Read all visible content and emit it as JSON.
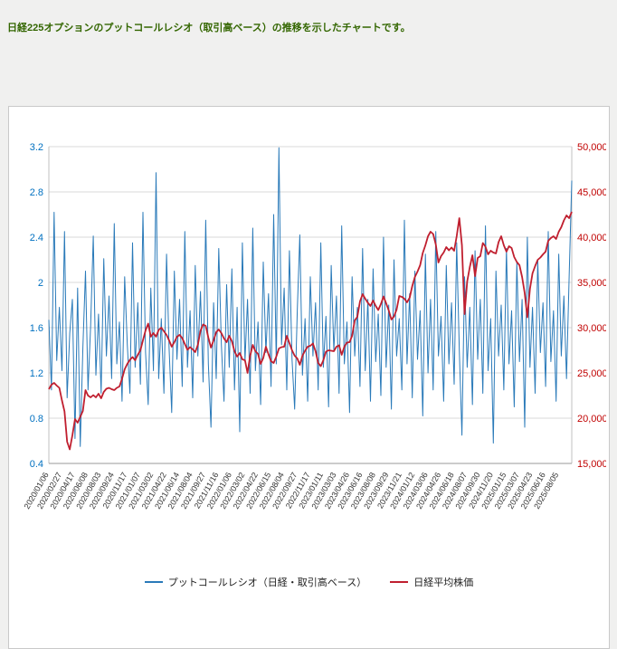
{
  "page": {
    "description": "日経225オプションのプットコールレシオ（取引高ベース）の推移を示したチャートです。"
  },
  "colors": {
    "description_text": "#336600",
    "page_background": "#f0f0ef",
    "panel_background": "#ffffff",
    "grid": "#d9d9d9",
    "axis_line": "#9a9a9a",
    "x_label_text": "#333333",
    "ratio_line": "#2a7ab9",
    "nikkei_line": "#c01f2f",
    "left_axis_text": "#0070c0",
    "right_axis_text": "#c00000"
  },
  "chart_data": {
    "type": "line",
    "title": "",
    "xlabel": "",
    "ylabel": "",
    "grid": "horizontal",
    "legend_position": "bottom",
    "points_per_label": 5,
    "x_labels": [
      "2020/01/06",
      "2020/02/27",
      "2020/04/17",
      "2020/06/08",
      "2020/08/03",
      "2020/09/24",
      "2020/11/17",
      "2021/01/07",
      "2021/03/02",
      "2021/04/22",
      "2021/06/14",
      "2021/08/04",
      "2021/09/27",
      "2021/11/16",
      "2022/01/06",
      "2022/03/02",
      "2022/04/22",
      "2022/06/15",
      "2022/08/04",
      "2022/09/27",
      "2022/11/17",
      "2023/01/11",
      "2023/03/03",
      "2023/04/26",
      "2023/06/16",
      "2023/08/08",
      "2023/09/29",
      "2023/11/21",
      "2024/01/12",
      "2024/03/06",
      "2024/04/26",
      "2024/06/18",
      "2024/08/07",
      "2024/09/30",
      "2024/11/20",
      "2025/01/15",
      "2025/03/07",
      "2025/04/23",
      "2025/06/16",
      "2025/08/05"
    ],
    "left_axis": {
      "min": 0.4,
      "max": 3.2,
      "step": 0.4,
      "color": "#0070c0",
      "tick_labels": [
        "0.4",
        "0.8",
        "1.2",
        "1.6",
        "2",
        "2.4",
        "2.8",
        "3.2"
      ]
    },
    "right_axis": {
      "min": 15000,
      "max": 50000,
      "step": 5000,
      "color": "#c00000",
      "tick_labels": [
        "15,000",
        "20,000",
        "25,000",
        "30,000",
        "35,000",
        "40,000",
        "45,000",
        "50,000"
      ]
    },
    "series": [
      {
        "name": "プットコールレシオ（日経・取引高ベース）",
        "axis": "left",
        "color": "#2a7ab9",
        "values": [
          1.67,
          1.05,
          2.62,
          1.31,
          1.78,
          1.22,
          2.45,
          0.98,
          1.55,
          1.85,
          0.62,
          1.95,
          0.55,
          1.42,
          2.1,
          1.05,
          1.62,
          2.41,
          1.18,
          1.72,
          1.02,
          2.21,
          1.35,
          1.88,
          1.15,
          2.52,
          1.28,
          1.65,
          0.95,
          2.05,
          1.45,
          1.02,
          2.35,
          1.25,
          1.82,
          1.1,
          2.62,
          1.38,
          0.92,
          1.95,
          1.22,
          2.97,
          1.15,
          1.68,
          1.02,
          2.25,
          1.42,
          0.85,
          2.1,
          1.32,
          1.85,
          1.08,
          2.45,
          1.25,
          1.75,
          0.98,
          2.15,
          1.35,
          1.92,
          1.12,
          2.55,
          1.28,
          0.72,
          1.82,
          1.15,
          2.3,
          1.45,
          0.95,
          1.98,
          1.25,
          2.12,
          1.05,
          1.78,
          0.68,
          2.35,
          1.3,
          1.85,
          1.02,
          2.48,
          1.22,
          1.65,
          0.92,
          2.18,
          1.38,
          1.9,
          1.08,
          2.6,
          1.28,
          3.19,
          1.45,
          1.95,
          1.05,
          2.28,
          1.32,
          0.88,
          1.75,
          2.42,
          1.18,
          1.68,
          0.95,
          2.05,
          1.35,
          1.82,
          1.05,
          2.35,
          1.25,
          1.7,
          0.9,
          2.15,
          1.4,
          1.88,
          1.02,
          2.5,
          1.28,
          1.65,
          0.85,
          2.05,
          1.35,
          1.78,
          1.08,
          2.3,
          1.22,
          1.85,
          0.95,
          2.12,
          1.3,
          1.72,
          1.0,
          2.4,
          1.25,
          1.8,
          0.88,
          2.2,
          1.35,
          1.68,
          1.05,
          2.55,
          1.28,
          1.9,
          0.98,
          2.1,
          1.32,
          1.75,
          0.82,
          2.25,
          1.2,
          1.85,
          1.05,
          2.45,
          1.35,
          1.7,
          0.95,
          2.15,
          1.28,
          1.82,
          1.1,
          2.35,
          1.4,
          0.65,
          2.05,
          1.25,
          1.78,
          0.92,
          2.28,
          1.32,
          1.85,
          1.02,
          2.5,
          1.22,
          1.68,
          0.58,
          2.1,
          1.35,
          1.8,
          1.05,
          2.3,
          1.28,
          1.75,
          0.9,
          2.18,
          1.3,
          1.85,
          0.72,
          2.4,
          1.25,
          1.78,
          1.02,
          2.2,
          1.38,
          1.82,
          1.08,
          2.45,
          1.3,
          1.75,
          0.95,
          2.25,
          1.35,
          1.88,
          1.15,
          2.05,
          2.9
        ]
      },
      {
        "name": "日経平均株価",
        "axis": "right",
        "color": "#c01f2f",
        "values": [
          23200,
          23700,
          23900,
          23600,
          23350,
          21950,
          20750,
          17400,
          16550,
          18100,
          19900,
          19500,
          20150,
          20800,
          23100,
          22500,
          22300,
          22550,
          22300,
          22700,
          22200,
          22900,
          23250,
          23350,
          23200,
          23100,
          23350,
          23500,
          24350,
          25400,
          26000,
          26450,
          26750,
          26400,
          27000,
          27500,
          28600,
          29700,
          30450,
          29000,
          29400,
          29000,
          29750,
          30000,
          29600,
          29200,
          28600,
          27900,
          28400,
          29000,
          29200,
          28850,
          28200,
          27550,
          27850,
          27600,
          27300,
          28100,
          29650,
          30350,
          30200,
          28900,
          27800,
          28600,
          29500,
          29800,
          29400,
          28800,
          28400,
          29100,
          28500,
          27400,
          26800,
          27200,
          26500,
          26400,
          25000,
          26900,
          28100,
          27400,
          27100,
          26000,
          26650,
          27900,
          27050,
          26300,
          26100,
          26800,
          27700,
          27850,
          27900,
          29100,
          28300,
          27500,
          26900,
          26600,
          25900,
          26900,
          27450,
          27900,
          28000,
          28250,
          27400,
          26100,
          25750,
          26400,
          27350,
          27500,
          27450,
          27400,
          27900,
          28050,
          27000,
          27900,
          28350,
          28400,
          29100,
          30800,
          31200,
          32900,
          33700,
          33200,
          32750,
          32400,
          33000,
          32400,
          31950,
          32600,
          33450,
          32700,
          31900,
          30900,
          31250,
          32000,
          33500,
          33400,
          33200,
          32800,
          33300,
          34600,
          35600,
          36200,
          36900,
          38250,
          39100,
          40100,
          40600,
          40350,
          39200,
          37200,
          37900,
          38300,
          38900,
          38550,
          38850,
          38500,
          40100,
          42100,
          39100,
          31500,
          35100,
          36700,
          38000,
          35700,
          37700,
          37900,
          39350,
          38950,
          38100,
          38500,
          38300,
          38200,
          39450,
          40100,
          39100,
          38400,
          39000,
          38800,
          37800,
          37250,
          36900,
          35600,
          33800,
          31150,
          34300,
          36000,
          36800,
          37500,
          37750,
          38100,
          38400,
          39600,
          39900,
          40100,
          39800,
          40600,
          41100,
          41850,
          42400,
          42100,
          42800
        ]
      }
    ],
    "legend": [
      {
        "label": "プットコールレシオ（日経・取引高ベース）",
        "color": "#2a7ab9"
      },
      {
        "label": "日経平均株価",
        "color": "#c01f2f"
      }
    ]
  }
}
